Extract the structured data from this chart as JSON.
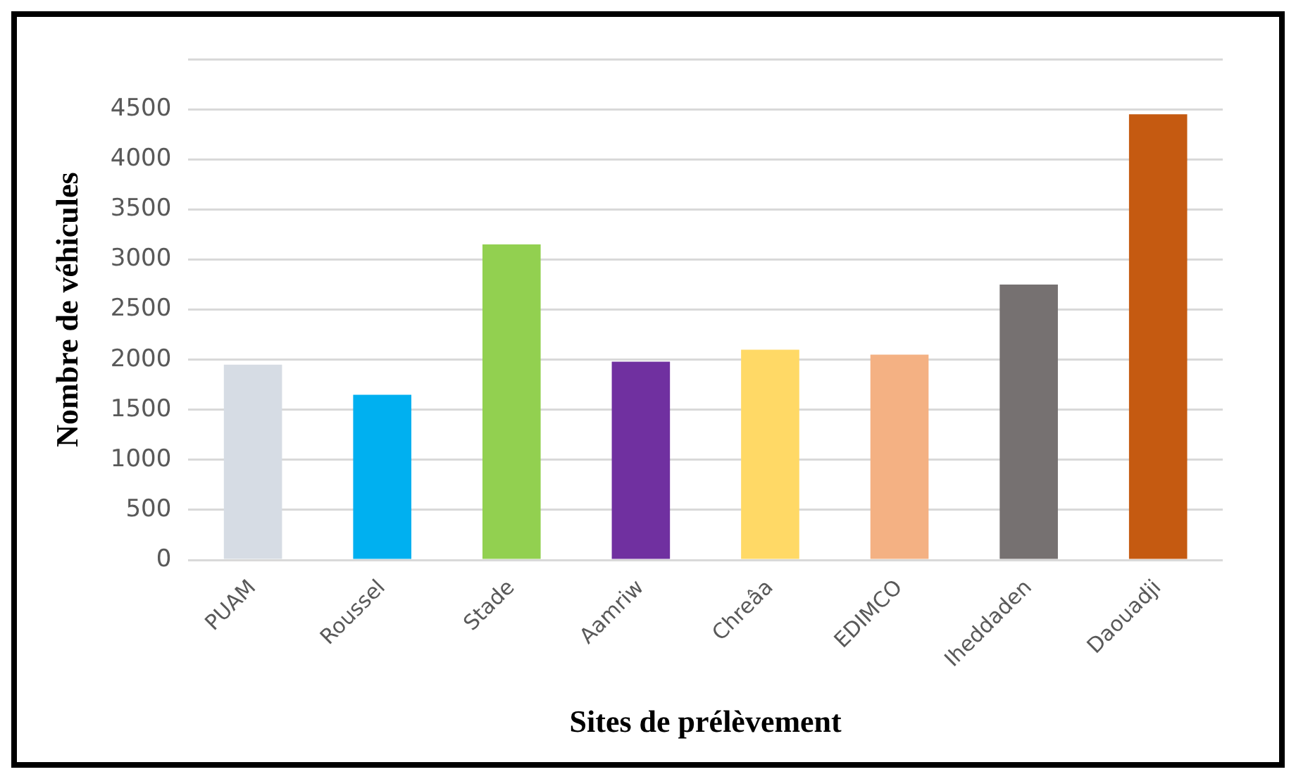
{
  "chart_data": {
    "type": "bar",
    "xlabel": "Sites de prélèvement",
    "ylabel": "Nombre de véhicules",
    "categories": [
      "PUAM",
      "Roussel",
      "Stade",
      "Aamriw",
      "Chreâa",
      "EDIMCO",
      "Iheddaden",
      "Daouadji"
    ],
    "values": [
      1950,
      1650,
      3150,
      1980,
      2100,
      2050,
      2750,
      4450
    ],
    "colors": [
      "#d6dce4",
      "#00b0f0",
      "#92d050",
      "#7030a0",
      "#ffd966",
      "#f4b183",
      "#767171",
      "#c55a11"
    ],
    "ylim": [
      0,
      5000
    ],
    "yticks": [
      0,
      500,
      1000,
      1500,
      2000,
      2500,
      3000,
      3500,
      4000,
      4500,
      {
        "value": 5000,
        "label": null
      }
    ],
    "grid": "y",
    "legend": false
  }
}
